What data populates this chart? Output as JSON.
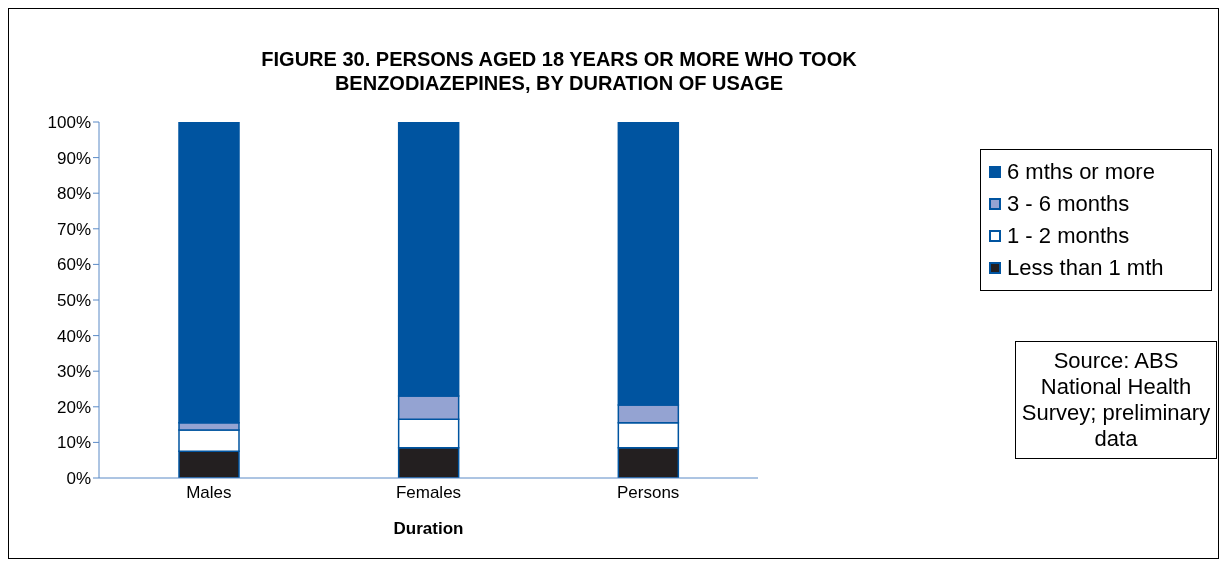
{
  "chart_data": {
    "type": "bar",
    "title": "FIGURE 30. PERSONS AGED 18 YEARS OR MORE WHO TOOK BENZODIAZEPINES, BY DURATION OF USAGE",
    "xlabel": "Duration",
    "categories": [
      "Males",
      "Females",
      "Persons"
    ],
    "stacked": true,
    "series": [
      {
        "name": "Less than 1 mth",
        "color": "#231f20",
        "values": [
          7.5,
          8.5,
          8.5
        ]
      },
      {
        "name": "1 - 2 months",
        "color": "#ffffff",
        "values": [
          6,
          8,
          7
        ]
      },
      {
        "name": "3 - 6 months",
        "color": "#94a3d2",
        "values": [
          2,
          6.5,
          5
        ]
      },
      {
        "name": "6 mths or more",
        "color": "#0054a0",
        "values": [
          84.5,
          77,
          79.5
        ]
      }
    ],
    "ylim": [
      0,
      100
    ],
    "yticks": [
      {
        "value": 0,
        "label": "0%"
      },
      {
        "value": 10,
        "label": "10%"
      },
      {
        "value": 20,
        "label": "20%"
      },
      {
        "value": 30,
        "label": "30%"
      },
      {
        "value": 40,
        "label": "40%"
      },
      {
        "value": 50,
        "label": "50%"
      },
      {
        "value": 60,
        "label": "60%"
      },
      {
        "value": 70,
        "label": "70%"
      },
      {
        "value": 80,
        "label": "80%"
      },
      {
        "value": 90,
        "label": "90%"
      },
      {
        "value": 100,
        "label": "100%"
      }
    ],
    "grid": false,
    "legend": "right",
    "annotations": [
      "Source: ABS National Health Survey; preliminary data"
    ]
  }
}
